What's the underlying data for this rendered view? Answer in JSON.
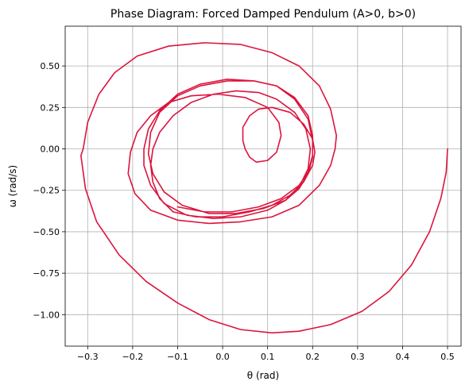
{
  "chart_data": {
    "type": "line",
    "title": "Phase Diagram: Forced Damped Pendulum (A>0, b>0)",
    "xlabel": "θ (rad)",
    "ylabel": "ω (rad/s)",
    "xlim": [
      -0.35,
      0.53
    ],
    "ylim": [
      -1.19,
      0.74
    ],
    "xticks": [
      -0.3,
      -0.2,
      -0.1,
      0.0,
      0.1,
      0.2,
      0.3,
      0.4,
      0.5
    ],
    "xtick_labels": [
      "−0.3",
      "−0.2",
      "−0.1",
      "0.0",
      "0.1",
      "0.2",
      "0.3",
      "0.4",
      "0.5"
    ],
    "yticks": [
      -1.0,
      -0.75,
      -0.5,
      -0.25,
      0.0,
      0.25,
      0.5
    ],
    "ytick_labels": [
      "−1.00",
      "−0.75",
      "−0.50",
      "−0.25",
      "0.00",
      "0.25",
      "0.50"
    ],
    "grid": true,
    "series": [
      {
        "color": "#dc143c",
        "points": [
          [
            0.5,
            0.0
          ],
          [
            0.497,
            -0.14
          ],
          [
            0.485,
            -0.3
          ],
          [
            0.46,
            -0.5
          ],
          [
            0.42,
            -0.7
          ],
          [
            0.37,
            -0.86
          ],
          [
            0.31,
            -0.98
          ],
          [
            0.24,
            -1.06
          ],
          [
            0.17,
            -1.1
          ],
          [
            0.11,
            -1.11
          ],
          [
            0.04,
            -1.09
          ],
          [
            -0.03,
            -1.03
          ],
          [
            -0.1,
            -0.93
          ],
          [
            -0.17,
            -0.8
          ],
          [
            -0.23,
            -0.64
          ],
          [
            -0.28,
            -0.44
          ],
          [
            -0.305,
            -0.24
          ],
          [
            -0.315,
            -0.04
          ],
          [
            -0.31,
            0.0
          ],
          [
            -0.3,
            0.16
          ],
          [
            -0.275,
            0.33
          ],
          [
            -0.24,
            0.46
          ],
          [
            -0.19,
            0.56
          ],
          [
            -0.12,
            0.62
          ],
          [
            -0.04,
            0.64
          ],
          [
            0.04,
            0.63
          ],
          [
            0.11,
            0.58
          ],
          [
            0.17,
            0.5
          ],
          [
            0.215,
            0.38
          ],
          [
            0.24,
            0.24
          ],
          [
            0.253,
            0.08
          ],
          [
            0.25,
            0.0
          ],
          [
            0.24,
            -0.1
          ],
          [
            0.215,
            -0.22
          ],
          [
            0.17,
            -0.34
          ],
          [
            0.11,
            -0.41
          ],
          [
            0.04,
            -0.44
          ],
          [
            -0.03,
            -0.45
          ],
          [
            -0.1,
            -0.43
          ],
          [
            -0.16,
            -0.37
          ],
          [
            -0.195,
            -0.27
          ],
          [
            -0.21,
            -0.15
          ],
          [
            -0.205,
            -0.02
          ],
          [
            -0.19,
            0.1
          ],
          [
            -0.16,
            0.2
          ],
          [
            -0.12,
            0.28
          ],
          [
            -0.07,
            0.32
          ],
          [
            -0.01,
            0.33
          ],
          [
            0.05,
            0.31
          ],
          [
            0.1,
            0.25
          ],
          [
            0.125,
            0.16
          ],
          [
            0.13,
            0.08
          ],
          [
            0.12,
            -0.02
          ],
          [
            0.1,
            -0.07
          ],
          [
            0.075,
            -0.08
          ],
          [
            0.06,
            -0.05
          ],
          [
            0.05,
            0.0
          ],
          [
            0.045,
            0.05
          ],
          [
            0.045,
            0.13
          ],
          [
            0.06,
            0.2
          ],
          [
            0.08,
            0.24
          ],
          [
            0.11,
            0.25
          ],
          [
            0.15,
            0.22
          ],
          [
            0.18,
            0.15
          ],
          [
            0.2,
            0.06
          ],
          [
            0.205,
            -0.02
          ],
          [
            0.2,
            -0.1
          ],
          [
            0.18,
            -0.2
          ],
          [
            0.15,
            -0.28
          ],
          [
            0.11,
            -0.34
          ],
          [
            0.06,
            -0.38
          ],
          [
            0.0,
            -0.41
          ],
          [
            -0.06,
            -0.41
          ],
          [
            -0.11,
            -0.38
          ],
          [
            -0.14,
            -0.3
          ],
          [
            -0.155,
            -0.2
          ],
          [
            -0.16,
            -0.1
          ],
          [
            -0.155,
            0.0
          ],
          [
            -0.14,
            0.1
          ],
          [
            -0.11,
            0.2
          ],
          [
            -0.07,
            0.28
          ],
          [
            -0.02,
            0.33
          ],
          [
            0.03,
            0.35
          ],
          [
            0.08,
            0.34
          ],
          [
            0.12,
            0.3
          ],
          [
            0.16,
            0.22
          ],
          [
            0.185,
            0.12
          ],
          [
            0.195,
            0.0
          ],
          [
            0.19,
            -0.12
          ],
          [
            0.17,
            -0.23
          ],
          [
            0.14,
            -0.31
          ],
          [
            0.1,
            -0.37
          ],
          [
            0.04,
            -0.41
          ],
          [
            -0.02,
            -0.42
          ],
          [
            -0.08,
            -0.4
          ],
          [
            -0.13,
            -0.33
          ],
          [
            -0.16,
            -0.22
          ],
          [
            -0.175,
            -0.1
          ],
          [
            -0.175,
            0.0
          ],
          [
            -0.165,
            0.12
          ],
          [
            -0.14,
            0.23
          ],
          [
            -0.1,
            0.33
          ],
          [
            -0.05,
            0.39
          ],
          [
            0.01,
            0.42
          ],
          [
            0.07,
            0.41
          ],
          [
            0.12,
            0.38
          ],
          [
            0.16,
            0.3
          ],
          [
            0.19,
            0.18
          ],
          [
            0.2,
            0.05
          ],
          [
            0.2,
            -0.05
          ],
          [
            0.19,
            -0.15
          ],
          [
            0.17,
            -0.24
          ],
          [
            0.14,
            -0.31
          ],
          [
            0.09,
            -0.36
          ],
          [
            0.03,
            -0.39
          ],
          [
            -0.03,
            -0.39
          ],
          [
            -0.09,
            -0.34
          ],
          [
            -0.13,
            -0.26
          ],
          [
            -0.155,
            -0.15
          ],
          [
            -0.165,
            -0.03
          ],
          [
            -0.16,
            0.1
          ],
          [
            -0.14,
            0.22
          ],
          [
            -0.1,
            0.32
          ],
          [
            -0.05,
            0.38
          ],
          [
            0.01,
            0.41
          ],
          [
            0.07,
            0.41
          ],
          [
            0.12,
            0.38
          ],
          [
            0.16,
            0.31
          ],
          [
            0.19,
            0.2
          ],
          [
            0.2,
            0.08
          ],
          [
            0.2,
            -0.04
          ],
          [
            0.19,
            -0.14
          ],
          [
            0.17,
            -0.22
          ],
          [
            0.13,
            -0.3
          ],
          [
            0.08,
            -0.35
          ],
          [
            0.02,
            -0.38
          ],
          [
            -0.04,
            -0.38
          ],
          [
            -0.1,
            -0.35
          ]
        ]
      }
    ]
  }
}
